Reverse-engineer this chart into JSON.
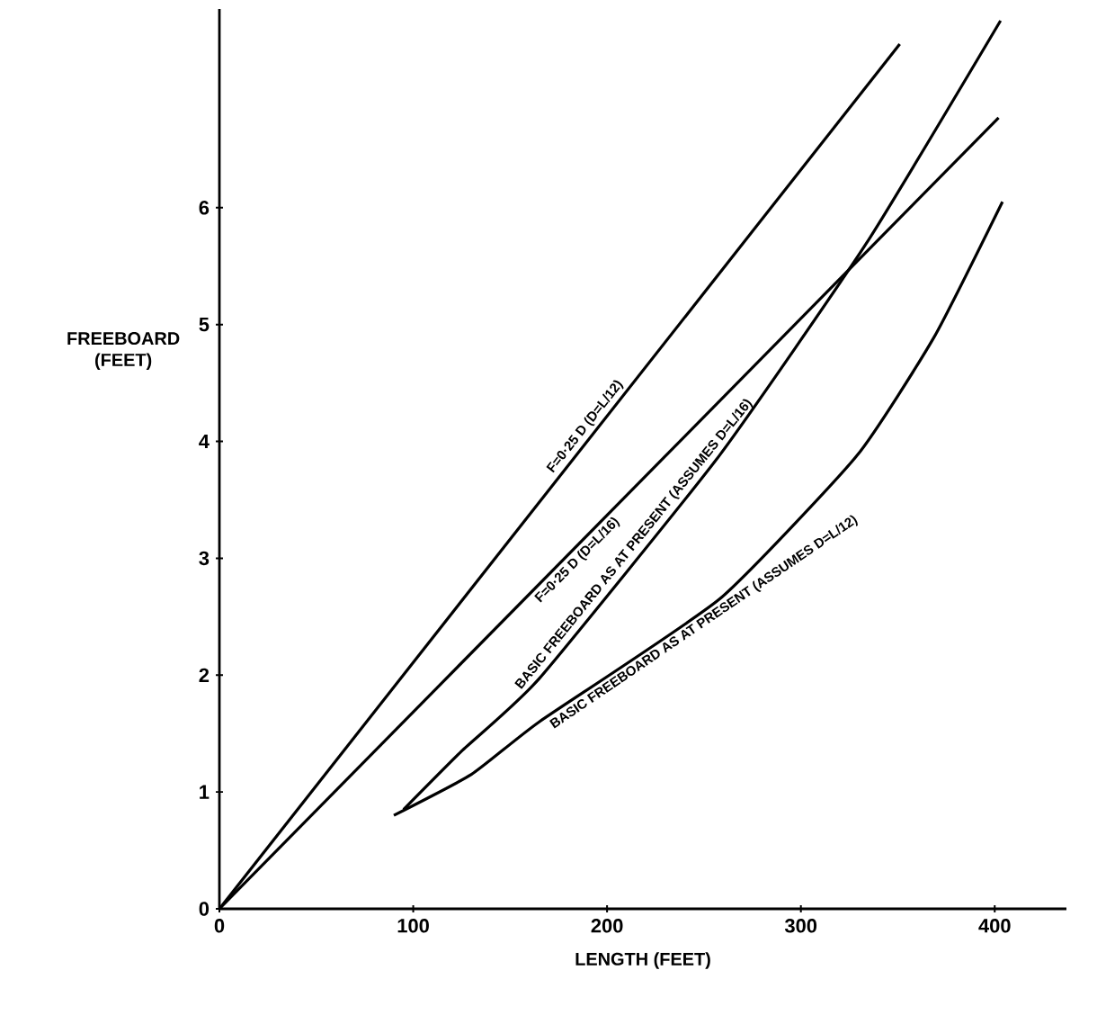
{
  "chart_data": {
    "type": "line",
    "xlabel": "LENGTH (FEET)",
    "ylabel": "FREEBOARD (FEET)",
    "xlim": [
      0,
      437
    ],
    "ylim": [
      0,
      7.7
    ],
    "xticks": [
      0,
      100,
      200,
      300,
      400
    ],
    "yticks": [
      0,
      1,
      2,
      3,
      4,
      5,
      6
    ],
    "series": [
      {
        "name": "F=0·25 D (D=L/12)",
        "color": "#000000",
        "x": [
          0,
          351
        ],
        "values": [
          0,
          7.4
        ]
      },
      {
        "name": "F=0·25 D (D=L/16)",
        "color": "#000000",
        "x": [
          0,
          402
        ],
        "values": [
          0,
          6.77
        ]
      },
      {
        "name": "BASIC FREEBOARD AS AT PRESENT (ASSUMES D=L/16)",
        "color": "#000000",
        "x": [
          95,
          125,
          165,
          258,
          334,
          403
        ],
        "values": [
          0.85,
          1.35,
          1.97,
          3.88,
          5.7,
          7.6
        ]
      },
      {
        "name": "BASIC FREEBOARD AS AT PRESENT (ASSUMES D=L/12)",
        "color": "#000000",
        "x": [
          90,
          130,
          165,
          258,
          329,
          369,
          404
        ],
        "values": [
          0.8,
          1.15,
          1.6,
          2.65,
          3.88,
          4.9,
          6.05
        ]
      }
    ]
  }
}
